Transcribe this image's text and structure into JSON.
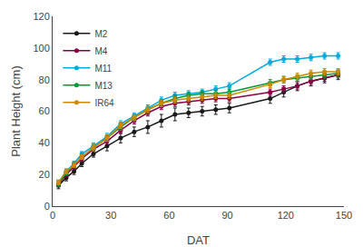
{
  "chart_data": {
    "type": "line",
    "xlabel": "DAT",
    "ylabel": "Plant Height (cm)",
    "xlim": [
      0,
      150
    ],
    "ylim": [
      0,
      120
    ],
    "xticks": [
      0,
      30,
      60,
      90,
      120,
      150
    ],
    "yticks": [
      0,
      20,
      40,
      60,
      80,
      100,
      120
    ],
    "grid": false,
    "legend": "upper left",
    "marker": "circle",
    "x": [
      3,
      7,
      11,
      15,
      21,
      28,
      35,
      42,
      49,
      56,
      63,
      70,
      77,
      84,
      91,
      112,
      119,
      126,
      133,
      140,
      147
    ],
    "series": [
      {
        "name": "M2",
        "color": "#1a1a1a",
        "values": [
          13,
          18,
          22,
          27,
          33,
          38,
          43,
          47,
          50,
          54,
          58,
          59,
          60,
          61,
          62,
          68,
          72,
          76,
          79,
          81,
          83
        ],
        "yerr": [
          2,
          2,
          2,
          2,
          2,
          3,
          3,
          3,
          4,
          4,
          4,
          3,
          3,
          3,
          3,
          3,
          3,
          3,
          3,
          3,
          3
        ]
      },
      {
        "name": "M4",
        "color": "#880044",
        "values": [
          14,
          20,
          25,
          30,
          36,
          41,
          48,
          54,
          59,
          63,
          65,
          66,
          67,
          68,
          68,
          72,
          74,
          76,
          79,
          81,
          83
        ],
        "yerr": [
          1.5,
          1.5,
          1.5,
          1.5,
          1.5,
          2,
          2,
          2,
          2,
          2,
          2,
          2,
          2,
          2,
          2,
          2,
          2,
          2,
          2,
          2,
          2
        ]
      },
      {
        "name": "M11",
        "color": "#00AADD",
        "values": [
          15,
          22,
          27,
          33,
          38,
          44,
          52,
          57,
          62,
          67,
          70,
          71,
          72,
          74,
          76,
          91,
          93,
          93,
          94,
          95,
          95
        ],
        "yerr": [
          1.5,
          1.5,
          1.5,
          1.5,
          2,
          2,
          2,
          2,
          2,
          2,
          2,
          2,
          2,
          2,
          2,
          2,
          2,
          2,
          2,
          2,
          2
        ]
      },
      {
        "name": "M13",
        "color": "#009933",
        "values": [
          14,
          21,
          26,
          31,
          37,
          43,
          50,
          56,
          61,
          65,
          68,
          70,
          71,
          71,
          72,
          78,
          80,
          81,
          82,
          83,
          84
        ],
        "yerr": [
          1.5,
          1.5,
          1.5,
          1.5,
          2,
          2,
          2,
          2,
          2,
          2,
          2,
          2,
          2,
          2,
          2,
          2,
          2,
          2,
          2,
          2,
          2
        ]
      },
      {
        "name": "IR64",
        "color": "#CC8800",
        "values": [
          15,
          22,
          26,
          31,
          37,
          43,
          51,
          56,
          61,
          65,
          67,
          68,
          69,
          70,
          70,
          77,
          80,
          82,
          84,
          85,
          85
        ],
        "yerr": [
          1.5,
          1.5,
          1.5,
          1.5,
          2,
          2,
          2,
          2,
          2,
          2,
          2,
          2,
          2,
          2,
          2,
          2,
          2,
          2,
          2,
          2,
          2
        ]
      }
    ]
  }
}
